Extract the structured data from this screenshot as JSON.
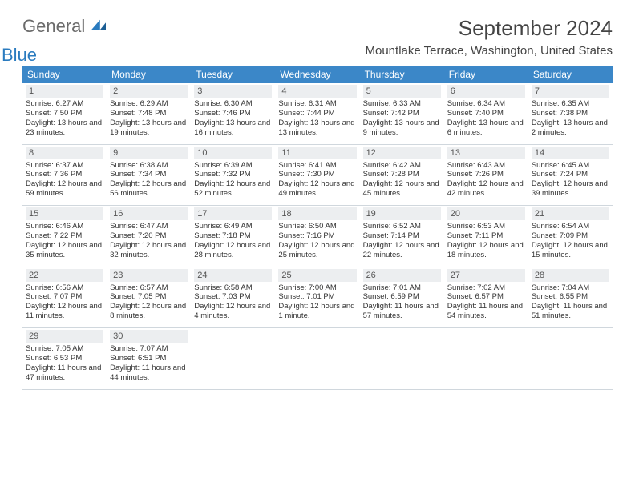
{
  "logo": {
    "general": "General",
    "blue": "Blue"
  },
  "header": {
    "month": "September 2024",
    "location": "Mountlake Terrace, Washington, United States"
  },
  "colors": {
    "header_bg": "#3b87c8",
    "header_text": "#ffffff",
    "daynum_bg": "#eceef0",
    "logo_gray": "#6b6b6b",
    "logo_blue": "#2a7bbf",
    "text": "#333333",
    "border": "#d0d7dd"
  },
  "dayNames": [
    "Sunday",
    "Monday",
    "Tuesday",
    "Wednesday",
    "Thursday",
    "Friday",
    "Saturday"
  ],
  "days": {
    "1": {
      "sunrise": "6:27 AM",
      "sunset": "7:50 PM",
      "daylight": "13 hours and 23 minutes."
    },
    "2": {
      "sunrise": "6:29 AM",
      "sunset": "7:48 PM",
      "daylight": "13 hours and 19 minutes."
    },
    "3": {
      "sunrise": "6:30 AM",
      "sunset": "7:46 PM",
      "daylight": "13 hours and 16 minutes."
    },
    "4": {
      "sunrise": "6:31 AM",
      "sunset": "7:44 PM",
      "daylight": "13 hours and 13 minutes."
    },
    "5": {
      "sunrise": "6:33 AM",
      "sunset": "7:42 PM",
      "daylight": "13 hours and 9 minutes."
    },
    "6": {
      "sunrise": "6:34 AM",
      "sunset": "7:40 PM",
      "daylight": "13 hours and 6 minutes."
    },
    "7": {
      "sunrise": "6:35 AM",
      "sunset": "7:38 PM",
      "daylight": "13 hours and 2 minutes."
    },
    "8": {
      "sunrise": "6:37 AM",
      "sunset": "7:36 PM",
      "daylight": "12 hours and 59 minutes."
    },
    "9": {
      "sunrise": "6:38 AM",
      "sunset": "7:34 PM",
      "daylight": "12 hours and 56 minutes."
    },
    "10": {
      "sunrise": "6:39 AM",
      "sunset": "7:32 PM",
      "daylight": "12 hours and 52 minutes."
    },
    "11": {
      "sunrise": "6:41 AM",
      "sunset": "7:30 PM",
      "daylight": "12 hours and 49 minutes."
    },
    "12": {
      "sunrise": "6:42 AM",
      "sunset": "7:28 PM",
      "daylight": "12 hours and 45 minutes."
    },
    "13": {
      "sunrise": "6:43 AM",
      "sunset": "7:26 PM",
      "daylight": "12 hours and 42 minutes."
    },
    "14": {
      "sunrise": "6:45 AM",
      "sunset": "7:24 PM",
      "daylight": "12 hours and 39 minutes."
    },
    "15": {
      "sunrise": "6:46 AM",
      "sunset": "7:22 PM",
      "daylight": "12 hours and 35 minutes."
    },
    "16": {
      "sunrise": "6:47 AM",
      "sunset": "7:20 PM",
      "daylight": "12 hours and 32 minutes."
    },
    "17": {
      "sunrise": "6:49 AM",
      "sunset": "7:18 PM",
      "daylight": "12 hours and 28 minutes."
    },
    "18": {
      "sunrise": "6:50 AM",
      "sunset": "7:16 PM",
      "daylight": "12 hours and 25 minutes."
    },
    "19": {
      "sunrise": "6:52 AM",
      "sunset": "7:14 PM",
      "daylight": "12 hours and 22 minutes."
    },
    "20": {
      "sunrise": "6:53 AM",
      "sunset": "7:11 PM",
      "daylight": "12 hours and 18 minutes."
    },
    "21": {
      "sunrise": "6:54 AM",
      "sunset": "7:09 PM",
      "daylight": "12 hours and 15 minutes."
    },
    "22": {
      "sunrise": "6:56 AM",
      "sunset": "7:07 PM",
      "daylight": "12 hours and 11 minutes."
    },
    "23": {
      "sunrise": "6:57 AM",
      "sunset": "7:05 PM",
      "daylight": "12 hours and 8 minutes."
    },
    "24": {
      "sunrise": "6:58 AM",
      "sunset": "7:03 PM",
      "daylight": "12 hours and 4 minutes."
    },
    "25": {
      "sunrise": "7:00 AM",
      "sunset": "7:01 PM",
      "daylight": "12 hours and 1 minute."
    },
    "26": {
      "sunrise": "7:01 AM",
      "sunset": "6:59 PM",
      "daylight": "11 hours and 57 minutes."
    },
    "27": {
      "sunrise": "7:02 AM",
      "sunset": "6:57 PM",
      "daylight": "11 hours and 54 minutes."
    },
    "28": {
      "sunrise": "7:04 AM",
      "sunset": "6:55 PM",
      "daylight": "11 hours and 51 minutes."
    },
    "29": {
      "sunrise": "7:05 AM",
      "sunset": "6:53 PM",
      "daylight": "11 hours and 47 minutes."
    },
    "30": {
      "sunrise": "7:07 AM",
      "sunset": "6:51 PM",
      "daylight": "11 hours and 44 minutes."
    }
  },
  "labels": {
    "sunrise": "Sunrise: ",
    "sunset": "Sunset: ",
    "daylight": "Daylight: "
  },
  "layout": {
    "startDayOfWeek": 0,
    "daysInMonth": 30,
    "columns": 7
  }
}
